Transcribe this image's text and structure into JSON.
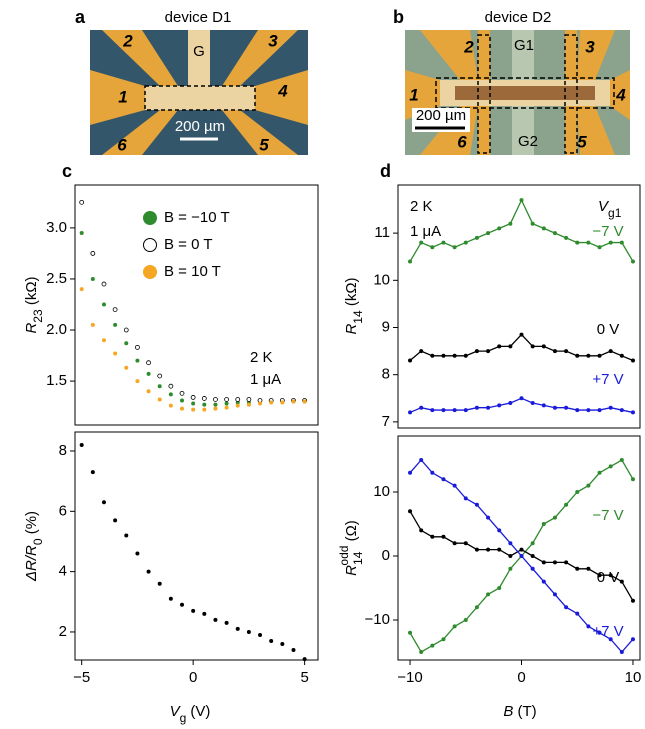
{
  "panels": {
    "a": {
      "letter": "a",
      "title": "device D1",
      "gate": "G",
      "contacts": [
        "1",
        "2",
        "3",
        "4",
        "5",
        "6"
      ],
      "scale": "200 µm"
    },
    "b": {
      "letter": "b",
      "title": "device D2",
      "gates": [
        "G1",
        "G2"
      ],
      "contacts": [
        "1",
        "2",
        "3",
        "4",
        "5",
        "6"
      ],
      "scale": "200 µm"
    },
    "c": {
      "letter": "c"
    },
    "d": {
      "letter": "d"
    }
  },
  "chart_data": [
    {
      "type": "scatter",
      "x": [
        -5,
        -4.5,
        -4,
        -3.5,
        -3,
        -2.5,
        -2,
        -1.5,
        -1,
        -0.5,
        0,
        0.5,
        1,
        1.5,
        2,
        2.5,
        3,
        3.5,
        4,
        4.5,
        5
      ],
      "series": [
        {
          "name": "B = −10 T",
          "color": "#2e8b2e",
          "hollow": false,
          "values": [
            2.95,
            2.5,
            2.25,
            2.05,
            1.87,
            1.7,
            1.57,
            1.45,
            1.37,
            1.31,
            1.28,
            1.27,
            1.27,
            1.28,
            1.29,
            1.29,
            1.3,
            1.3,
            1.3,
            1.3,
            1.3
          ]
        },
        {
          "name": "B = 0 T",
          "color": "#000000",
          "hollow": true,
          "values": [
            3.25,
            2.75,
            2.45,
            2.2,
            2.0,
            1.83,
            1.68,
            1.55,
            1.45,
            1.38,
            1.34,
            1.33,
            1.32,
            1.32,
            1.32,
            1.32,
            1.31,
            1.31,
            1.31,
            1.31,
            1.31
          ]
        },
        {
          "name": "B = 10 T",
          "color": "#f5a623",
          "hollow": false,
          "values": [
            2.4,
            2.05,
            1.9,
            1.77,
            1.63,
            1.5,
            1.4,
            1.32,
            1.26,
            1.23,
            1.22,
            1.22,
            1.23,
            1.24,
            1.26,
            1.27,
            1.28,
            1.29,
            1.29,
            1.3,
            1.3
          ]
        }
      ],
      "legend": "upper left",
      "ylabel": {
        "main": "R",
        "sub": "23",
        "unit": " (kΩ)"
      },
      "annotations": [
        {
          "text": "2 K",
          "color": "#000000"
        },
        {
          "text": "1 μA",
          "color": "#000000"
        }
      ],
      "xlim": [
        -5.3,
        5.6
      ],
      "ylim": [
        1.07,
        3.42
      ],
      "yticks": [
        {
          "value": 3,
          "label": "3.0"
        },
        2.5,
        {
          "value": 2,
          "label": "2.0"
        },
        1.5
      ]
    },
    {
      "type": "scatter",
      "x": [
        -5,
        -4.5,
        -4,
        -3.5,
        -3,
        -2.5,
        -2,
        -1.5,
        -1,
        -0.5,
        0,
        0.5,
        1,
        1.5,
        2,
        2.5,
        3,
        3.5,
        4,
        4.5,
        5
      ],
      "series": [
        {
          "name": null,
          "color": "#000000",
          "hollow": false,
          "values": [
            8.2,
            7.3,
            6.3,
            5.7,
            5.2,
            4.6,
            4.0,
            3.6,
            3.1,
            2.9,
            2.7,
            2.6,
            2.4,
            2.3,
            2.1,
            2.0,
            1.9,
            1.7,
            1.6,
            1.4,
            1.1
          ]
        }
      ],
      "ylabel": {
        "main": "ΔR/R",
        "sub": "0",
        "unit": " (%)"
      },
      "xlabel": {
        "main": "V",
        "sub": "g",
        "unit": " (V)"
      },
      "xlim": [
        -5.3,
        5.6
      ],
      "ylim": [
        1.07,
        8.63
      ],
      "xticks": [
        {
          "value": -5,
          "label": "−5"
        },
        0,
        5
      ],
      "yticks": [
        8,
        6,
        4,
        2
      ]
    },
    {
      "type": "line",
      "x": [
        -10,
        -9,
        -8,
        -7,
        -6,
        -5,
        -4,
        -3,
        -2,
        -1,
        0,
        1,
        2,
        3,
        4,
        5,
        6,
        7,
        8,
        9,
        10
      ],
      "series": [
        {
          "name": "−7 V",
          "color": "#2e8b2e",
          "values": [
            10.4,
            10.8,
            10.7,
            10.8,
            10.7,
            10.8,
            10.9,
            11.0,
            11.1,
            11.2,
            11.7,
            11.2,
            11.1,
            11.0,
            10.9,
            10.8,
            10.8,
            10.7,
            10.8,
            10.8,
            10.4
          ]
        },
        {
          "name": "0 V",
          "color": "#000000",
          "values": [
            8.3,
            8.5,
            8.4,
            8.4,
            8.4,
            8.4,
            8.5,
            8.5,
            8.6,
            8.6,
            8.85,
            8.6,
            8.6,
            8.5,
            8.5,
            8.4,
            8.4,
            8.4,
            8.5,
            8.4,
            8.3
          ]
        },
        {
          "name": "+7 V",
          "color": "#1a1adb",
          "values": [
            7.2,
            7.3,
            7.25,
            7.25,
            7.25,
            7.25,
            7.3,
            7.3,
            7.35,
            7.4,
            7.5,
            7.4,
            7.35,
            7.3,
            7.3,
            7.25,
            7.25,
            7.25,
            7.3,
            7.25,
            7.2
          ]
        }
      ],
      "ylabel": {
        "main": "R",
        "sub": "14",
        "unit": " (kΩ)"
      },
      "annotations": [
        {
          "text": "2 K",
          "color": "#000000"
        },
        {
          "text": "1 μA",
          "color": "#000000"
        },
        {
          "text": "V",
          "sub": "g1",
          "color": "#000000"
        }
      ],
      "xlim": [
        -11.08,
        10.63
      ],
      "ylim": [
        6.87,
        12.02
      ],
      "yticks": [
        11,
        10,
        9,
        8,
        7
      ]
    },
    {
      "type": "line",
      "x": [
        -10,
        -9,
        -8,
        -7,
        -6,
        -5,
        -4,
        -3,
        -2,
        -1,
        0,
        1,
        2,
        3,
        4,
        5,
        6,
        7,
        8,
        9,
        10
      ],
      "series": [
        {
          "name": "−7 V",
          "color": "#2e8b2e",
          "values": [
            -12,
            -15,
            -14,
            -13,
            -11,
            -10,
            -8,
            -6,
            -5,
            -2,
            0,
            2,
            5,
            6,
            8,
            10,
            11,
            13,
            14,
            15,
            12
          ]
        },
        {
          "name": "0 V",
          "color": "#000000",
          "values": [
            7,
            4,
            3,
            3,
            2,
            2,
            1,
            1,
            1,
            0,
            1,
            0,
            -1,
            -1,
            -1,
            -2,
            -2,
            -3,
            -3,
            -4,
            -7
          ]
        },
        {
          "name": "+7 V",
          "color": "#1a1adb",
          "values": [
            13,
            15,
            13,
            12,
            11,
            9,
            8,
            6,
            4,
            2,
            0,
            -2,
            -4,
            -6,
            -8,
            -9,
            -11,
            -12,
            -13,
            -15,
            -13
          ]
        }
      ],
      "ylabel": {
        "main": "R",
        "sub": "14",
        "sup": "odd",
        "unit": " (Ω)"
      },
      "xlabel": {
        "main": "B",
        "unit": " (T)"
      },
      "xlim": [
        -11.08,
        10.63
      ],
      "ylim": [
        -16.25,
        18.75
      ],
      "xticks": [
        {
          "value": -10,
          "label": "−10"
        },
        0,
        10
      ],
      "yticks": [
        10,
        0,
        {
          "value": -10,
          "label": "−10"
        }
      ]
    }
  ]
}
